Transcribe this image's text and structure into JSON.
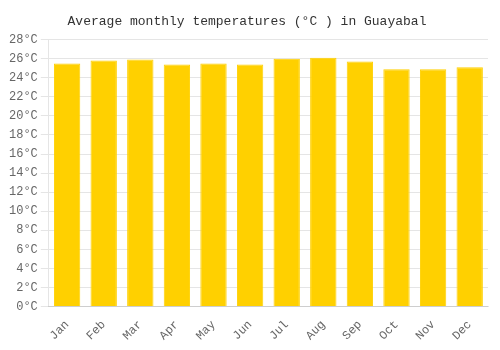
{
  "chart_data": {
    "type": "bar",
    "title": "Average monthly temperatures (°C ) in Guayabal",
    "categories": [
      "Jan",
      "Feb",
      "Mar",
      "Apr",
      "May",
      "Jun",
      "Jul",
      "Aug",
      "Sep",
      "Oct",
      "Nov",
      "Dec"
    ],
    "values": [
      25.5,
      25.8,
      25.9,
      25.4,
      25.5,
      25.4,
      26.0,
      26.1,
      25.7,
      24.9,
      24.9,
      25.1
    ],
    "color": "#FFD000",
    "ylim": [
      0,
      28
    ],
    "yticks": [
      {
        "value": 0,
        "label": "0°C"
      },
      {
        "value": 2,
        "label": "2°C"
      },
      {
        "value": 4,
        "label": "4°C"
      },
      {
        "value": 6,
        "label": "6°C"
      },
      {
        "value": 8,
        "label": "8°C"
      },
      {
        "value": 10,
        "label": "10°C"
      },
      {
        "value": 12,
        "label": "12°C"
      },
      {
        "value": 14,
        "label": "14°C"
      },
      {
        "value": 16,
        "label": "16°C"
      },
      {
        "value": 18,
        "label": "18°C"
      },
      {
        "value": 20,
        "label": "20°C"
      },
      {
        "value": 22,
        "label": "22°C"
      },
      {
        "value": 24,
        "label": "24°C"
      },
      {
        "value": 26,
        "label": "26°C"
      },
      {
        "value": 28,
        "label": "28°C"
      }
    ],
    "grid": true
  }
}
